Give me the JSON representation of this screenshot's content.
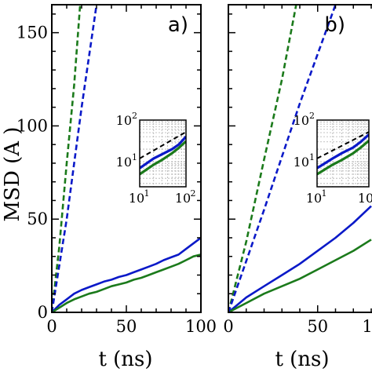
{
  "chart_data": [
    {
      "type": "line",
      "panel_label": "a)",
      "xlabel": "t (ns)",
      "ylabel": "MSD (Å²)",
      "ylabel_visible": "MSD (A )",
      "xlim": [
        0,
        100
      ],
      "ylim": [
        0,
        165
      ],
      "xticks": [
        0,
        50,
        100
      ],
      "yticks": [
        0,
        50,
        100,
        150
      ],
      "series": [
        {
          "style": "solid",
          "color": "#0a19c8",
          "x": [
            0,
            5,
            10,
            15,
            20,
            25,
            30,
            35,
            40,
            45,
            50,
            55,
            60,
            65,
            70,
            75,
            80,
            85,
            90,
            95,
            100
          ],
          "y": [
            0,
            4,
            7,
            10,
            12,
            13.5,
            15,
            16.5,
            17.5,
            19,
            20,
            21.5,
            23,
            24.5,
            26,
            28,
            29.5,
            31,
            34,
            37,
            40
          ]
        },
        {
          "style": "solid",
          "color": "#1b7a1b",
          "x": [
            0,
            5,
            10,
            15,
            20,
            25,
            30,
            35,
            40,
            45,
            50,
            55,
            60,
            65,
            70,
            75,
            80,
            85,
            90,
            95,
            100
          ],
          "y": [
            0,
            2.5,
            5,
            7,
            8.5,
            10,
            11,
            12.5,
            14,
            15,
            16,
            17.5,
            18.5,
            20,
            21.5,
            23,
            24.5,
            26,
            28,
            30,
            31
          ]
        },
        {
          "style": "dashed",
          "color": "#1b7a1b",
          "x": [
            0,
            5,
            10,
            15,
            19
          ],
          "y": [
            0,
            35,
            80,
            122,
            165
          ]
        },
        {
          "style": "dashed",
          "color": "#0a19c8",
          "x": [
            0,
            10,
            20,
            30
          ],
          "y": [
            0,
            50,
            110,
            165
          ]
        }
      ],
      "inset": {
        "scale": "log",
        "xlim": [
          10,
          100
        ],
        "ylim": [
          2.5,
          100
        ],
        "xtick_labels": [
          {
            "base": "10",
            "exp": "1"
          },
          {
            "base": "10",
            "exp": "2"
          }
        ],
        "ytick_labels": [
          {
            "base": "10",
            "exp": "1"
          },
          {
            "base": "10",
            "exp": "2"
          }
        ],
        "series": [
          {
            "style": "dashed",
            "color": "#000000",
            "x": [
              10,
              100
            ],
            "y": [
              12,
              52
            ]
          },
          {
            "style": "solid",
            "color": "#0a19c8",
            "x": [
              10,
              20,
              30,
              50,
              70,
              100
            ],
            "y": [
              7,
              12,
              15,
              20,
              26,
              40
            ]
          },
          {
            "style": "solid",
            "color": "#1b7a1b",
            "x": [
              10,
              20,
              30,
              50,
              70,
              100
            ],
            "y": [
              5,
              8.5,
              11,
              16,
              21.5,
              31
            ]
          }
        ]
      }
    },
    {
      "type": "line",
      "panel_label": "b)",
      "xlabel": "t (ns)",
      "xlim": [
        0,
        80
      ],
      "ylim": [
        0,
        165
      ],
      "xticks": [
        0,
        50
      ],
      "xtick_labels_visible": [
        "0",
        "50",
        "1"
      ],
      "series": [
        {
          "style": "solid",
          "color": "#0a19c8",
          "x": [
            0,
            10,
            20,
            30,
            40,
            50,
            60,
            70,
            80
          ],
          "y": [
            0,
            8,
            14,
            20,
            26,
            33,
            40,
            48,
            57
          ]
        },
        {
          "style": "solid",
          "color": "#1b7a1b",
          "x": [
            0,
            10,
            20,
            30,
            40,
            50,
            60,
            70,
            80
          ],
          "y": [
            0,
            5,
            10,
            14,
            18,
            23,
            28,
            33,
            39
          ]
        },
        {
          "style": "dashed",
          "color": "#1b7a1b",
          "x": [
            0,
            10,
            20,
            30,
            38
          ],
          "y": [
            0,
            38,
            82,
            125,
            165
          ]
        },
        {
          "style": "dashed",
          "color": "#0a19c8",
          "x": [
            0,
            20,
            40,
            60
          ],
          "y": [
            0,
            55,
            112,
            165
          ]
        }
      ],
      "inset": {
        "scale": "log",
        "xlim": [
          10,
          100
        ],
        "ylim": [
          2.5,
          100
        ],
        "xtick_labels": [
          {
            "base": "10",
            "exp": "1"
          },
          {
            "base": "10",
            "exp": "2"
          }
        ],
        "ytick_labels": [
          {
            "base": "10",
            "exp": "1"
          },
          {
            "base": "10",
            "exp": "2"
          }
        ],
        "series": [
          {
            "style": "dashed",
            "color": "#000000",
            "x": [
              10,
              100
            ],
            "y": [
              12,
              52
            ]
          },
          {
            "style": "solid",
            "color": "#0a19c8",
            "x": [
              10,
              20,
              30,
              50,
              70,
              100
            ],
            "y": [
              7,
              12,
              16,
              22,
              30,
              45
            ]
          },
          {
            "style": "solid",
            "color": "#1b7a1b",
            "x": [
              10,
              20,
              30,
              50,
              70,
              100
            ],
            "y": [
              5,
              8.5,
              11,
              16,
              22,
              32
            ]
          }
        ]
      }
    }
  ]
}
